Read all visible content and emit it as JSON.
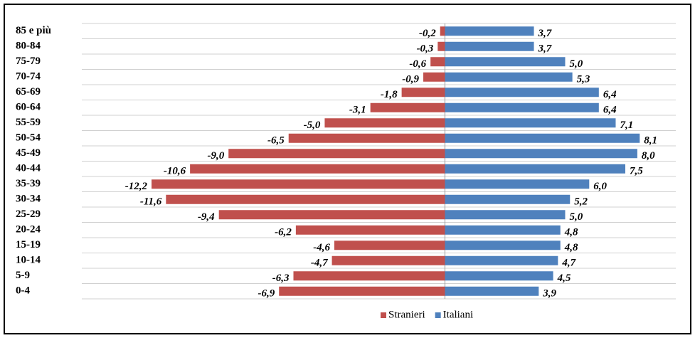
{
  "chart_data": {
    "type": "bar",
    "orientation": "horizontal",
    "categories": [
      "85 e più",
      "80-84",
      "75-79",
      "70-74",
      "65-69",
      "60-64",
      "55-59",
      "50-54",
      "45-49",
      "40-44",
      "35-39",
      "30-34",
      "25-29",
      "20-24",
      "15-19",
      "10-14",
      "5-9",
      "0-4"
    ],
    "series": [
      {
        "name": "Stranieri",
        "color": "#c0504d",
        "values": [
          -0.2,
          -0.3,
          -0.6,
          -0.9,
          -1.8,
          -3.1,
          -5.0,
          -6.5,
          -9.0,
          -10.6,
          -12.2,
          -11.6,
          -9.4,
          -6.2,
          -4.6,
          -4.7,
          -6.3,
          -6.9
        ],
        "value_labels": [
          "-0,2",
          "-0,3",
          "-0,6",
          "-0,9",
          "-1,8",
          "-3,1",
          "-5,0",
          "-6,5",
          "-9,0",
          "-10,6",
          "-12,2",
          "-11,6",
          "-9,4",
          "-6,2",
          "-4,6",
          "-4,7",
          "-6,3",
          "-6,9"
        ]
      },
      {
        "name": "Italiani",
        "color": "#4f81bd",
        "values": [
          3.7,
          3.7,
          5.0,
          5.3,
          6.4,
          6.4,
          7.1,
          8.1,
          8.0,
          7.5,
          6.0,
          5.2,
          5.0,
          4.8,
          4.8,
          4.7,
          4.5,
          3.9
        ],
        "value_labels": [
          "3,7",
          "3,7",
          "5,0",
          "5,3",
          "6,4",
          "6,4",
          "7,1",
          "8,1",
          "8,0",
          "7,5",
          "6,0",
          "5,2",
          "5,0",
          "4,8",
          "4,8",
          "4,7",
          "4,5",
          "3,9"
        ]
      }
    ],
    "xlim": [
      -15.1,
      9.6
    ],
    "legend": "bottom"
  }
}
